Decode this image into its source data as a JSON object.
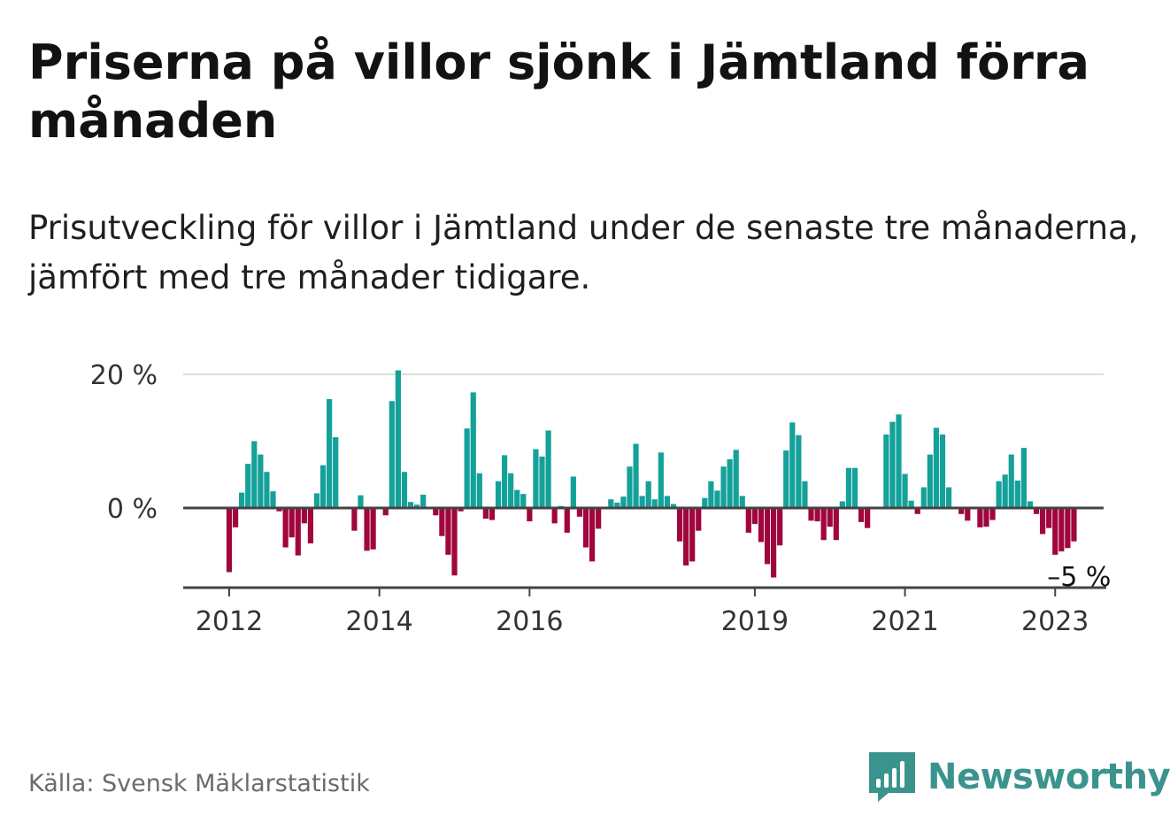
{
  "title": "Priserna på villor sjönk i Jämtland förra månaden",
  "subtitle": "Prisutveckling för villor i Jämtland under de senaste tre månaderna, jämfört med tre månader tidigare.",
  "source": "Källa: Svensk Mäklarstatistik",
  "brand": "Newsworthy",
  "colors": {
    "positive": "#14a19a",
    "negative": "#a0063d",
    "axis": "#444444",
    "grid": "#dddddd",
    "brand": "#3a948d"
  },
  "chart_data": {
    "type": "bar",
    "x_start": "2012-01",
    "x_interval": "month",
    "x_ticks": [
      "2012",
      "2014",
      "2016",
      "2019",
      "2021",
      "2023"
    ],
    "y_ticks": [
      "20 %",
      "0 %"
    ],
    "ylim": [
      -12,
      22
    ],
    "grid": true,
    "last_value_label": "–5 %",
    "values": [
      -9.6,
      -2.9,
      2.3,
      6.6,
      10.0,
      8.0,
      5.4,
      2.5,
      -0.5,
      -5.9,
      -4.4,
      -7.1,
      -2.3,
      -5.3,
      2.2,
      6.4,
      16.3,
      10.6,
      0,
      0,
      -3.4,
      1.9,
      -6.4,
      -6.2,
      0,
      -1.1,
      16.0,
      20.6,
      5.4,
      0.9,
      0.5,
      2.0,
      0,
      -1.1,
      -4.2,
      -7.0,
      -10.1,
      -0.5,
      11.9,
      17.3,
      5.2,
      -1.6,
      -1.8,
      4.0,
      7.9,
      5.2,
      2.7,
      2.1,
      -2.0,
      8.8,
      7.7,
      11.6,
      -2.3,
      0.3,
      -3.7,
      4.7,
      -1.3,
      -5.9,
      -8.0,
      -3.1,
      0,
      1.3,
      0.8,
      1.7,
      6.2,
      9.6,
      1.8,
      4.0,
      1.3,
      8.3,
      1.8,
      0.6,
      -5.0,
      -8.6,
      -8.0,
      -3.4,
      1.5,
      4.0,
      2.6,
      6.2,
      7.3,
      8.7,
      1.8,
      -3.7,
      -2.4,
      -5.1,
      -8.4,
      -10.4,
      -5.6,
      8.6,
      12.8,
      10.9,
      4.0,
      -1.9,
      -2.0,
      -4.8,
      -2.8,
      -4.8,
      1.0,
      6.0,
      6.0,
      -2.1,
      -3.0,
      0,
      0,
      11.0,
      12.9,
      14.0,
      5.1,
      1.1,
      -0.9,
      3.1,
      8.0,
      12.0,
      11.0,
      3.1,
      0,
      -0.9,
      -1.9,
      0,
      -2.9,
      -2.8,
      -1.8,
      4.0,
      5.0,
      8.0,
      4.1,
      9.0,
      1.0,
      -0.9,
      -3.9,
      -3.0,
      -7.0,
      -6.5,
      -6.0,
      -5.0
    ]
  }
}
